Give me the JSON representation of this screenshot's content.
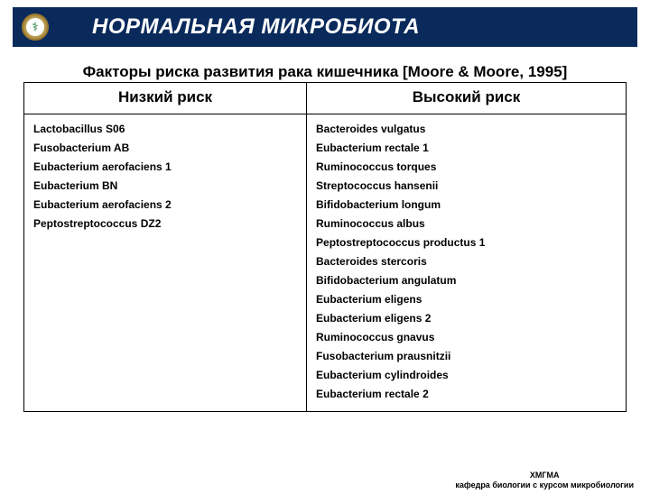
{
  "header": {
    "title": "НОРМАЛЬНАЯ МИКРОБИОТА",
    "logo_glyph": "⚕"
  },
  "subtitle": "Факторы риска развития рака кишечника [Moore & Moore, 1995]",
  "table": {
    "col_left_header": "Низкий риск",
    "col_right_header": "Высокий риск",
    "low_risk": [
      "Lactobacillus S06",
      "Fusobacterium AB",
      "Eubacterium aerofaciens 1",
      "Eubacterium BN",
      "Eubacterium aerofaciens 2",
      "Peptostreptococcus DZ2"
    ],
    "high_risk": [
      "Bacteroides vulgatus",
      "Eubacterium rectale 1",
      "Ruminococcus torques",
      "Streptococcus hansenii",
      "Bifidobacterium longum",
      "Ruminococcus albus",
      "Peptostreptococcus productus 1",
      "Bacteroides stercoris",
      "Bifidobacterium angulatum",
      "Eubacterium eligens",
      "Eubacterium eligens 2",
      "Ruminococcus gnavus",
      "Fusobacterium prausnitzii",
      "Eubacterium cylindroides",
      "Eubacterium rectale 2"
    ]
  },
  "footer": {
    "line1": "ХМГМА",
    "line2": "кафедра биологии с курсом микробиологии"
  },
  "colors": {
    "title_bg": "#0a2a5c",
    "title_text": "#ffffff",
    "border": "#000000",
    "body_text": "#000000",
    "background": "#ffffff"
  }
}
